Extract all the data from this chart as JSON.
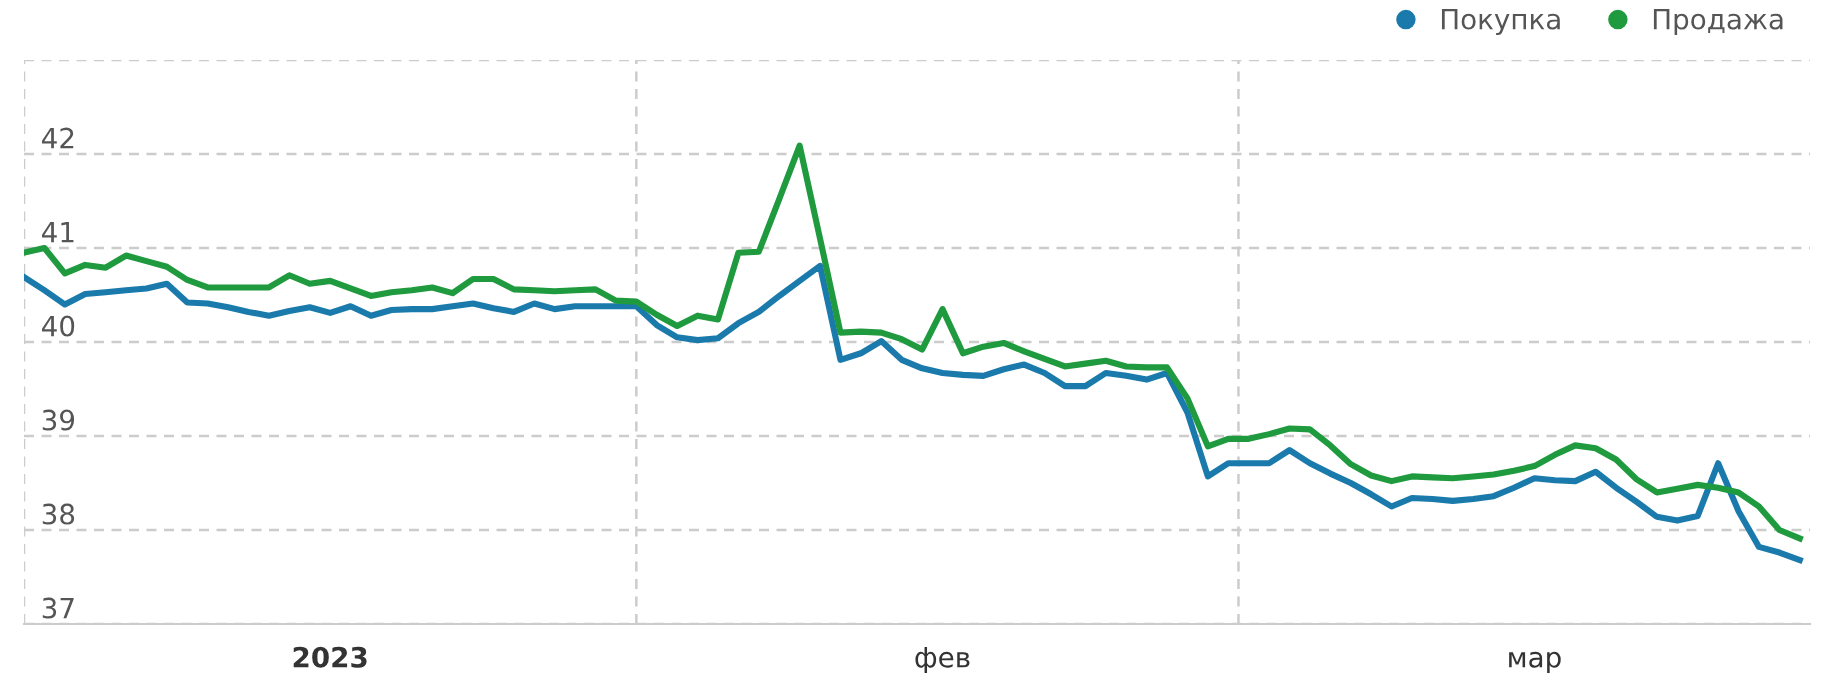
{
  "chart_data": {
    "type": "line",
    "categories": [
      null,
      null,
      null,
      null,
      null,
      null,
      null,
      null,
      null,
      null,
      null,
      null,
      null,
      null,
      null,
      "2023",
      null,
      null,
      null,
      null,
      null,
      null,
      null,
      null,
      null,
      null,
      null,
      null,
      null,
      null,
      null,
      null,
      null,
      null,
      null,
      null,
      null,
      null,
      null,
      null,
      null,
      null,
      null,
      null,
      null,
      "фев",
      null,
      null,
      null,
      null,
      null,
      null,
      null,
      null,
      null,
      null,
      null,
      null,
      null,
      null,
      null,
      null,
      null,
      null,
      null,
      null,
      null,
      null,
      null,
      null,
      null,
      null,
      null,
      null,
      "мар",
      null,
      null,
      null,
      null,
      null,
      null,
      null,
      null,
      null,
      null,
      null,
      null,
      null
    ],
    "ylim": [
      37,
      43
    ],
    "yticks": [
      37,
      38,
      39,
      40,
      41,
      42,
      {
        "value": 43,
        "label": null
      }
    ],
    "grid": "xy",
    "legend": "top right",
    "line_style": "solid",
    "series": [
      {
        "name": "Покупка",
        "color": "#1a7aab",
        "values": [
          40.69,
          40.55,
          40.4,
          40.51,
          40.53,
          40.55,
          40.57,
          40.62,
          40.42,
          40.41,
          40.37,
          40.32,
          40.28,
          40.33,
          40.37,
          40.31,
          40.38,
          40.28,
          40.34,
          40.35,
          40.35,
          40.38,
          40.41,
          40.36,
          40.32,
          40.41,
          40.35,
          40.38,
          40.38,
          40.38,
          40.38,
          40.18,
          40.05,
          40.02,
          40.04,
          40.2,
          40.32,
          40.49,
          40.65,
          40.81,
          39.81,
          39.88,
          40.01,
          39.81,
          39.72,
          39.67,
          39.65,
          39.64,
          39.71,
          39.76,
          39.67,
          39.53,
          39.53,
          39.67,
          39.64,
          39.6,
          39.67,
          39.25,
          38.57,
          38.71,
          38.71,
          38.71,
          38.85,
          38.71,
          38.6,
          38.5,
          38.38,
          38.25,
          38.34,
          38.33,
          38.31,
          38.33,
          38.36,
          38.45,
          38.55,
          38.53,
          38.52,
          38.62,
          38.45,
          38.3,
          38.14,
          38.1,
          38.15,
          38.71,
          38.2,
          37.82,
          37.76,
          37.68
        ]
      },
      {
        "name": "Продажа",
        "color": "#1f9a3e",
        "values": [
          40.95,
          41.0,
          40.73,
          40.82,
          40.79,
          40.92,
          40.86,
          40.8,
          40.66,
          40.58,
          40.58,
          40.58,
          40.58,
          40.71,
          40.62,
          40.65,
          40.57,
          40.49,
          40.53,
          40.55,
          40.58,
          40.52,
          40.67,
          40.67,
          40.56,
          40.55,
          40.54,
          40.55,
          40.56,
          40.44,
          40.43,
          40.29,
          40.17,
          40.28,
          40.24,
          40.95,
          40.96,
          41.52,
          42.09,
          41.1,
          40.1,
          40.11,
          40.1,
          40.03,
          39.92,
          40.35,
          39.88,
          39.95,
          39.99,
          39.9,
          39.82,
          39.74,
          39.77,
          39.8,
          39.74,
          39.73,
          39.73,
          39.4,
          38.89,
          38.97,
          38.97,
          39.02,
          39.08,
          39.07,
          38.9,
          38.7,
          38.58,
          38.52,
          38.57,
          38.56,
          38.55,
          38.57,
          38.59,
          38.63,
          38.68,
          38.8,
          38.9,
          38.87,
          38.75,
          38.54,
          38.4,
          38.44,
          38.48,
          38.45,
          38.4,
          38.25,
          38.0,
          37.91
        ]
      }
    ]
  }
}
